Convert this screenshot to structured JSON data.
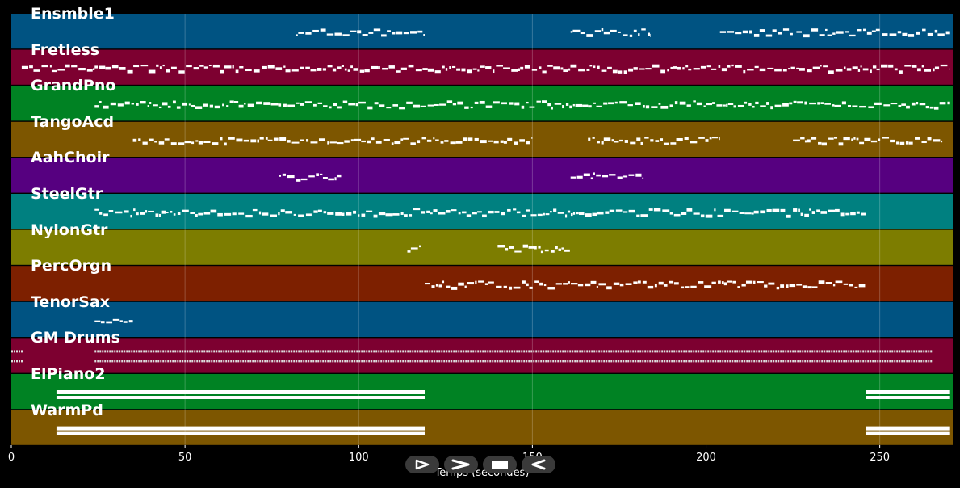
{
  "colors": {
    "background": "#000000",
    "blue": "#005382",
    "red": "#7d0030",
    "green": "#008223",
    "orange": "#7d5600",
    "purple": "#560080",
    "teal": "#008080",
    "olive": "#7d7d00",
    "brown": "#7d2000",
    "notes": "#ffffff"
  },
  "tracks": [
    {
      "name": "Ensmble1",
      "color": "blue"
    },
    {
      "name": "Fretless",
      "color": "red"
    },
    {
      "name": "GrandPno",
      "color": "green"
    },
    {
      "name": "TangoAcd",
      "color": "orange"
    },
    {
      "name": "AahChoir",
      "color": "purple"
    },
    {
      "name": "SteelGtr",
      "color": "teal"
    },
    {
      "name": "NylonGtr",
      "color": "olive"
    },
    {
      "name": "PercOrgn",
      "color": "brown"
    },
    {
      "name": "TenorSax",
      "color": "blue"
    },
    {
      "name": "GM Drums",
      "color": "red"
    },
    {
      "name": "ElPiano2",
      "color": "green"
    },
    {
      "name": "WarmPd",
      "color": "orange"
    }
  ],
  "x_axis": {
    "label": "Temps (secondes)",
    "range": [
      0,
      271
    ],
    "ticks": [
      0,
      50,
      100,
      150,
      200,
      250
    ],
    "tick_labels": [
      "0",
      "50",
      "100",
      "150",
      "200",
      "250"
    ],
    "grid": true
  },
  "note_activity": [
    {
      "track": "Ensmble1",
      "segments": [
        [
          82,
          119
        ],
        [
          161,
          184
        ],
        [
          204,
          225
        ],
        [
          226,
          270
        ]
      ]
    },
    {
      "track": "Fretless",
      "segments": [
        [
          3,
          24
        ],
        [
          24,
          270
        ]
      ]
    },
    {
      "track": "GrandPno",
      "segments": [
        [
          24,
          270
        ]
      ]
    },
    {
      "track": "TangoAcd",
      "segments": [
        [
          35,
          150
        ],
        [
          166,
          204
        ],
        [
          225,
          268
        ]
      ]
    },
    {
      "track": "AahChoir",
      "segments": [
        [
          77,
          95
        ],
        [
          161,
          182
        ]
      ]
    },
    {
      "track": "SteelGtr",
      "segments": [
        [
          24,
          246
        ]
      ]
    },
    {
      "track": "NylonGtr",
      "segments": [
        [
          114,
          118
        ],
        [
          140,
          161
        ]
      ]
    },
    {
      "track": "PercOrgn",
      "segments": [
        [
          119,
          246
        ]
      ]
    },
    {
      "track": "TenorSax",
      "segments": [
        [
          24,
          35
        ]
      ]
    },
    {
      "track": "GM Drums",
      "segments": [
        [
          0,
          3
        ],
        [
          24,
          265
        ]
      ]
    },
    {
      "track": "ElPiano2",
      "segments": [
        [
          13,
          119
        ],
        [
          246,
          270
        ]
      ]
    },
    {
      "track": "WarmPd",
      "segments": [
        [
          13,
          119
        ],
        [
          246,
          270
        ]
      ]
    }
  ],
  "controls": [
    {
      "name": "play-button",
      "icon": "play-icon"
    },
    {
      "name": "forward-button",
      "icon": "forward-icon"
    },
    {
      "name": "stop-button",
      "icon": "stop-icon"
    },
    {
      "name": "rewind-button",
      "icon": "rewind-icon"
    }
  ]
}
